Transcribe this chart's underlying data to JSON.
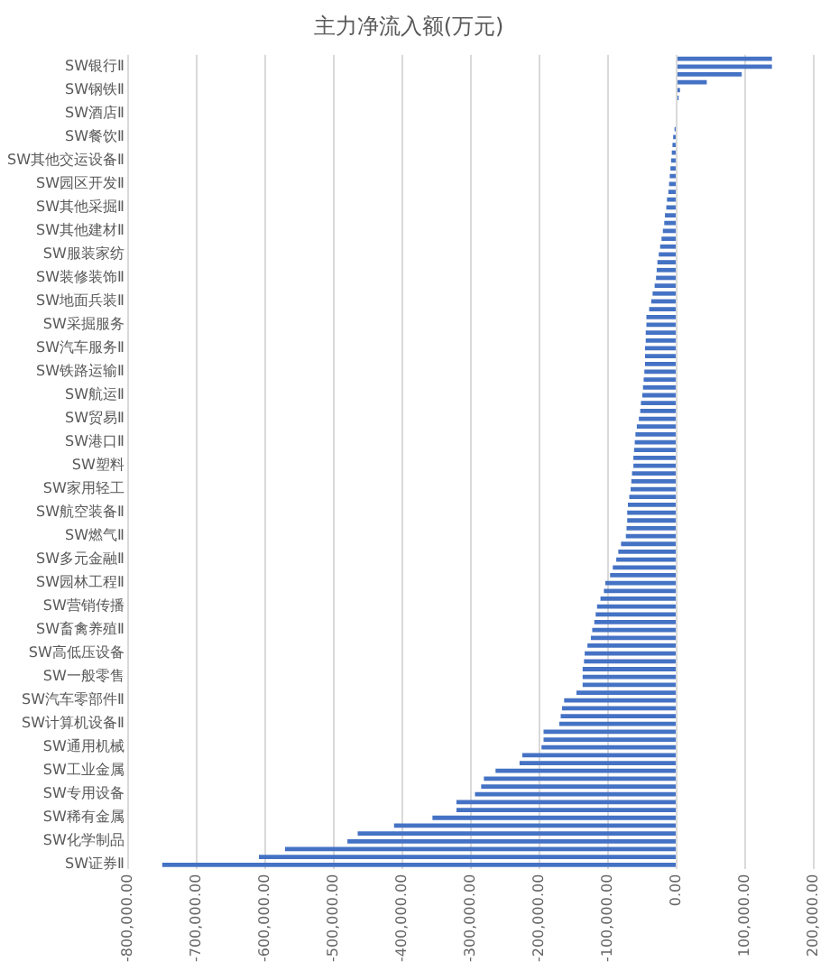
{
  "chart_data": {
    "type": "bar",
    "orientation": "horizontal",
    "title": "主力净流入额(万元)",
    "categories": [
      null,
      "SW银行Ⅱ",
      null,
      null,
      "SW钢铁Ⅱ",
      null,
      null,
      "SW酒店Ⅱ",
      null,
      null,
      "SW餐饮Ⅱ",
      null,
      null,
      "SW其他交运设备Ⅱ",
      null,
      null,
      "SW园区开发Ⅱ",
      null,
      null,
      "SW其他采掘Ⅱ",
      null,
      null,
      "SW其他建材Ⅱ",
      null,
      null,
      "SW服装家纺",
      null,
      null,
      "SW装修装饰Ⅱ",
      null,
      null,
      "SW地面兵装Ⅱ",
      null,
      null,
      "SW采掘服务",
      null,
      null,
      "SW汽车服务Ⅱ",
      null,
      null,
      "SW铁路运输Ⅱ",
      null,
      null,
      "SW航运Ⅱ",
      null,
      null,
      "SW贸易Ⅱ",
      null,
      null,
      "SW港口Ⅱ",
      null,
      null,
      "SW塑料",
      null,
      null,
      "SW家用轻工",
      null,
      null,
      "SW航空装备Ⅱ",
      null,
      null,
      "SW燃气Ⅱ",
      null,
      null,
      "SW多元金融Ⅱ",
      null,
      null,
      "SW园林工程Ⅱ",
      null,
      null,
      "SW营销传播",
      null,
      null,
      "SW畜禽养殖Ⅱ",
      null,
      null,
      "SW高低压设备",
      null,
      null,
      "SW一般零售",
      null,
      null,
      "SW汽车零部件Ⅱ",
      null,
      null,
      "SW计算机设备Ⅱ",
      null,
      null,
      "SW通用机械",
      null,
      null,
      "SW工业金属",
      null,
      null,
      "SW专用设备",
      null,
      null,
      "SW稀有金属",
      null,
      null,
      "SW化学制品",
      null,
      null,
      "SW证券Ⅱ"
    ],
    "values": [
      139000,
      139000,
      95000,
      44000,
      5000,
      3000,
      null,
      null,
      null,
      -3000,
      -5000,
      -6000,
      -7000,
      -8000,
      -9000,
      -10000,
      -11000,
      -12000,
      -14000,
      -15000,
      -17000,
      -18000,
      -20000,
      -22000,
      -24000,
      -26000,
      -28000,
      -29000,
      -30000,
      -32000,
      -35000,
      -37000,
      -40000,
      -44000,
      -44000,
      -45000,
      -45000,
      -46000,
      -46000,
      -46000,
      -47000,
      -48000,
      -49000,
      -50000,
      -52000,
      -53000,
      -55000,
      -58000,
      -60000,
      -61000,
      -62000,
      -63000,
      -63000,
      -65000,
      -66000,
      -67000,
      -69000,
      -71000,
      -72000,
      -72000,
      -73000,
      -74000,
      -81000,
      -85000,
      -88000,
      -93000,
      -97000,
      -104000,
      -106000,
      -111000,
      -116000,
      -118000,
      -120000,
      -123000,
      -125000,
      -130000,
      -134000,
      -135000,
      -137000,
      -137000,
      -137000,
      -146000,
      -164000,
      -167000,
      -169000,
      -171000,
      -194000,
      -194000,
      -197000,
      -225000,
      -229000,
      -264000,
      -281000,
      -285000,
      -294000,
      -321000,
      -321000,
      -356000,
      -412000,
      -465000,
      -480000,
      -571000,
      -609000,
      -750000
    ],
    "color": "#4472c4",
    "xlim": [
      -800000,
      200000
    ],
    "xticks": [
      {
        "value": -800000,
        "label": "-800,000.00"
      },
      {
        "value": -700000,
        "label": "-700,000.00"
      },
      {
        "value": -600000,
        "label": "-600,000.00"
      },
      {
        "value": -500000,
        "label": "-500,000.00"
      },
      {
        "value": -400000,
        "label": "-400,000.00"
      },
      {
        "value": -300000,
        "label": "-300,000.00"
      },
      {
        "value": -200000,
        "label": "-200,000.00"
      },
      {
        "value": -100000,
        "label": "-100,000.00"
      },
      {
        "value": 0,
        "label": "0.00"
      },
      {
        "value": 100000,
        "label": "100,000.00"
      },
      {
        "value": 200000,
        "label": "200,000.00"
      }
    ],
    "grid": "x"
  }
}
